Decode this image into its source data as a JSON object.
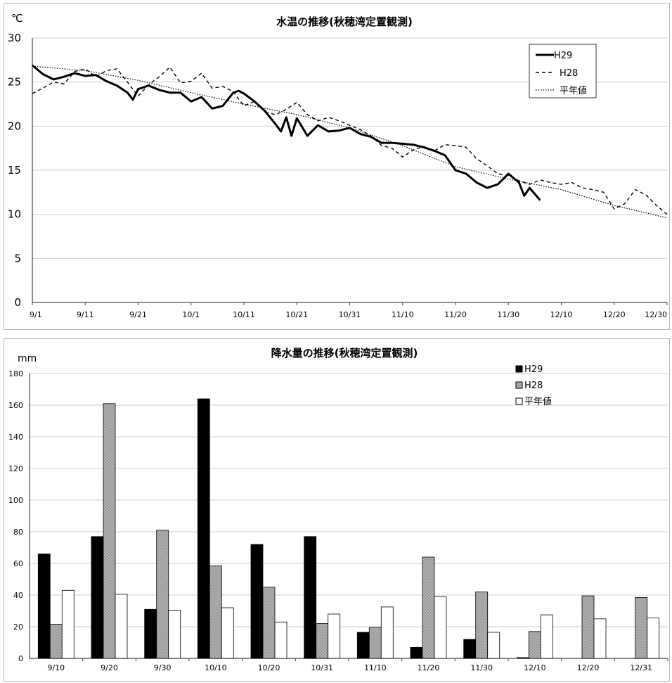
{
  "top_chart": {
    "title": "水温の推移(秋穂湾定置観測)",
    "unit": "℃",
    "legend": [
      "H29",
      "H28",
      "平年値"
    ],
    "x_ticks": [
      "9/1",
      "9/11",
      "9/21",
      "10/1",
      "10/11",
      "10/21",
      "10/31",
      "11/10",
      "11/20",
      "11/30",
      "12/10",
      "12/20",
      "12/30"
    ],
    "y_ticks": [
      "0",
      "5",
      "10",
      "15",
      "20",
      "25",
      "30"
    ]
  },
  "bottom_chart": {
    "title": "降水量の推移(秋穂湾定置観測)",
    "unit": "mm",
    "legend": [
      "H29",
      "H28",
      "平年値"
    ],
    "x_ticks": [
      "9/10",
      "9/20",
      "9/30",
      "10/10",
      "10/20",
      "10/31",
      "11/10",
      "11/20",
      "11/30",
      "12/10",
      "12/20",
      "12/31"
    ],
    "y_ticks": [
      "0",
      "20",
      "40",
      "60",
      "80",
      "100",
      "120",
      "140",
      "160",
      "180"
    ]
  },
  "chart_data": [
    {
      "type": "line",
      "title": "水温の推移(秋穂湾定置観測)",
      "ylabel": "℃",
      "ylim": [
        0,
        30
      ],
      "x_ticks": [
        "9/1",
        "9/11",
        "9/21",
        "10/1",
        "10/11",
        "10/21",
        "10/31",
        "11/10",
        "11/20",
        "11/30",
        "12/10",
        "12/20",
        "12/30"
      ],
      "grid": true,
      "legend_position": "top-right",
      "series": [
        {
          "name": "H29",
          "x": [
            "9/1",
            "9/3",
            "9/5",
            "9/7",
            "9/9",
            "9/11",
            "9/13",
            "9/15",
            "9/17",
            "9/19",
            "9/20",
            "9/21",
            "9/23",
            "9/25",
            "9/27",
            "9/29",
            "10/1",
            "10/3",
            "10/5",
            "10/7",
            "10/9",
            "10/10",
            "10/11",
            "10/13",
            "10/15",
            "10/17",
            "10/18",
            "10/19",
            "10/20",
            "10/21",
            "10/23",
            "10/25",
            "10/27",
            "10/29",
            "10/31",
            "11/2",
            "11/4",
            "11/6",
            "11/8",
            "11/10",
            "11/12",
            "11/14",
            "11/16",
            "11/18",
            "11/20",
            "11/22",
            "11/24",
            "11/26",
            "11/28",
            "11/30",
            "12/2",
            "12/3",
            "12/4",
            "12/6"
          ],
          "values": [
            26.9,
            25.9,
            25.3,
            25.6,
            26.0,
            25.7,
            25.8,
            25.1,
            24.6,
            23.8,
            23.0,
            24.2,
            24.6,
            24.1,
            23.8,
            23.8,
            22.8,
            23.3,
            22.0,
            22.3,
            23.8,
            24.0,
            23.7,
            22.8,
            21.7,
            20.2,
            19.4,
            21.0,
            18.9,
            20.9,
            18.9,
            20.1,
            19.4,
            19.5,
            19.8,
            19.1,
            18.8,
            18.1,
            18.1,
            18.0,
            17.9,
            17.6,
            17.2,
            16.7,
            15.0,
            14.6,
            13.6,
            13.0,
            13.4,
            14.6,
            13.6,
            12.1,
            13.0,
            11.6
          ]
        },
        {
          "name": "H28",
          "x": [
            "9/1",
            "9/3",
            "9/5",
            "9/7",
            "9/9",
            "9/11",
            "9/13",
            "9/15",
            "9/17",
            "9/19",
            "9/21",
            "9/23",
            "9/25",
            "9/27",
            "9/29",
            "10/1",
            "10/3",
            "10/5",
            "10/7",
            "10/9",
            "10/11",
            "10/13",
            "10/15",
            "10/17",
            "10/19",
            "10/21",
            "10/23",
            "10/25",
            "10/27",
            "10/29",
            "10/31",
            "11/2",
            "11/4",
            "11/6",
            "11/8",
            "11/10",
            "11/12",
            "11/14",
            "11/16",
            "11/18",
            "11/20",
            "11/22",
            "11/24",
            "11/26",
            "11/28",
            "11/30",
            "12/2",
            "12/4",
            "12/6",
            "12/8",
            "12/10",
            "12/12",
            "12/14",
            "12/16",
            "12/18",
            "12/20",
            "12/22",
            "12/24",
            "12/26",
            "12/28",
            "12/30"
          ],
          "values": [
            23.7,
            24.3,
            25.0,
            24.8,
            26.2,
            26.5,
            25.6,
            26.3,
            26.5,
            25.0,
            23.4,
            24.7,
            25.6,
            26.7,
            24.9,
            25.1,
            26.0,
            24.3,
            24.5,
            23.9,
            22.3,
            22.8,
            21.6,
            21.3,
            21.9,
            22.7,
            21.3,
            20.6,
            21.0,
            20.6,
            20.1,
            19.6,
            18.9,
            17.8,
            17.5,
            16.5,
            17.3,
            17.7,
            17.2,
            17.9,
            17.8,
            17.6,
            16.3,
            15.5,
            14.6,
            14.4,
            13.8,
            13.4,
            13.9,
            13.6,
            13.4,
            13.6,
            13.0,
            12.8,
            12.5,
            10.6,
            11.2,
            12.8,
            12.2,
            11.0,
            10.0
          ]
        },
        {
          "name": "平年値",
          "x": [
            "9/1",
            "9/11",
            "9/21",
            "10/1",
            "10/11",
            "10/21",
            "10/31",
            "11/10",
            "11/20",
            "11/30",
            "12/10",
            "12/20",
            "12/30"
          ],
          "values": [
            26.8,
            26.3,
            25.2,
            23.8,
            22.5,
            21.3,
            19.8,
            17.8,
            15.4,
            14.0,
            12.8,
            11.0,
            9.6
          ]
        }
      ]
    },
    {
      "type": "bar",
      "title": "降水量の推移(秋穂湾定置観測)",
      "ylabel": "mm",
      "ylim": [
        0,
        180
      ],
      "categories": [
        "9/10",
        "9/20",
        "9/30",
        "10/10",
        "10/20",
        "10/31",
        "11/10",
        "11/20",
        "11/30",
        "12/10",
        "12/20",
        "12/31"
      ],
      "grid": true,
      "legend_position": "top-right",
      "series": [
        {
          "name": "H29",
          "values": [
            66,
            77,
            31,
            164,
            72,
            77,
            16.5,
            7,
            12,
            0.5,
            0,
            0
          ]
        },
        {
          "name": "H28",
          "values": [
            21.5,
            161,
            81,
            58.5,
            45,
            22,
            19.5,
            64,
            42,
            17,
            39.5,
            38.5
          ]
        },
        {
          "name": "平年値",
          "values": [
            43,
            40.5,
            30.5,
            32,
            23,
            28,
            32.5,
            39,
            16.5,
            27.5,
            25,
            25.5
          ]
        }
      ],
      "colors": {
        "H29": "#000000",
        "H28": "#a6a6a6",
        "平年値": "#ffffff"
      }
    }
  ]
}
